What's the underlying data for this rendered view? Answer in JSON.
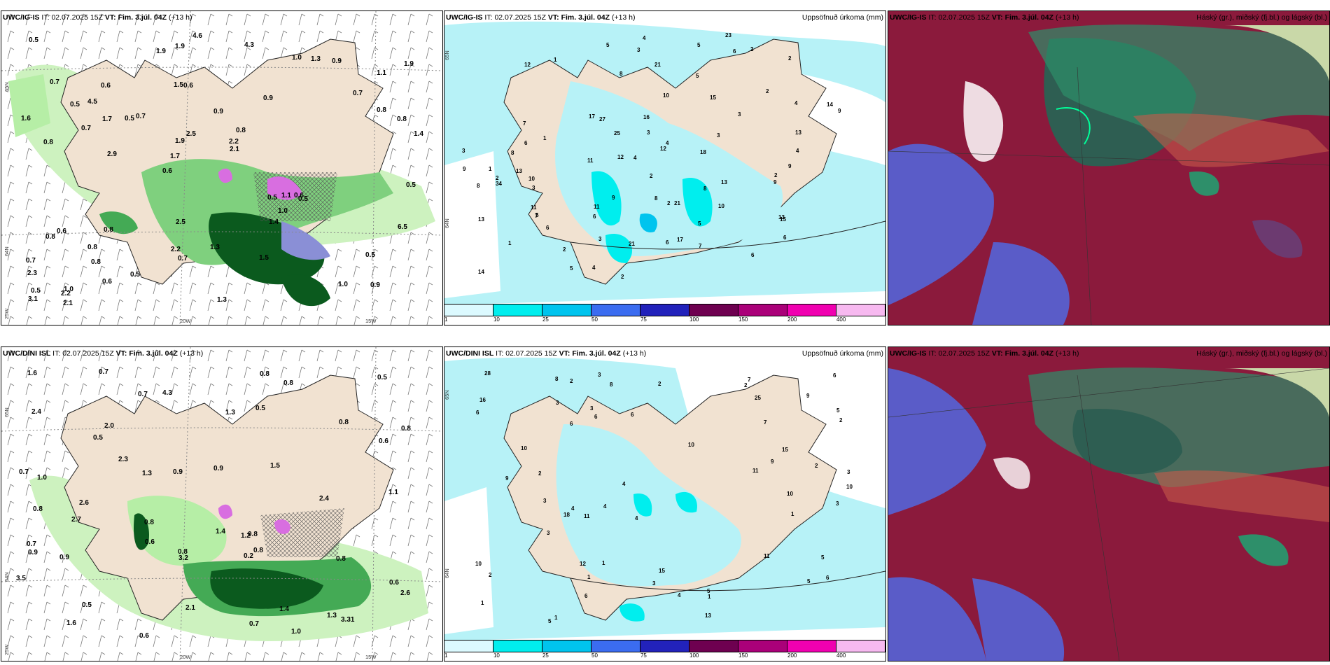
{
  "panels": [
    {
      "model": "UWC/IG-IS",
      "it_label": "IT:",
      "it": "02.07.2025 15Z",
      "vt_label": "VT: Fim. 3.júl. 04Z",
      "lead": "(+13 h)",
      "right_title": "",
      "axis": {
        "lat1": "65N",
        "lat2": "64N",
        "lon1": "25W",
        "lon2": "20W",
        "lon3": "15W"
      },
      "values": [
        "0.9",
        "0.8",
        "1.1",
        "0.6",
        "0.9",
        "1.0",
        "1.5",
        "0.9",
        "0.6",
        "0.7",
        "2.3",
        "0.8",
        "0.6",
        "0.8",
        "0.5",
        "0.7",
        "1.9",
        "1.4",
        "0.5",
        "0.8",
        "1.7",
        "2.2",
        "1.9",
        "0.6",
        "1.0",
        "0.8",
        "1.0",
        "0.5",
        "0.6",
        "1.3",
        "0.5",
        "0.7",
        "1.4",
        "0.6",
        "0.8",
        "2.2",
        "0.5",
        "0.7",
        "2.1",
        "0.8",
        "0.7",
        "1.9",
        "1.0",
        "1.5",
        "0.8",
        "2.1",
        "3.1",
        "1.3",
        "0.9",
        "4.6",
        "2.9",
        "1.6",
        "4.5",
        "1.3",
        "2.2",
        "4.3",
        "1.9",
        "2.5",
        "6.5",
        "2.5",
        "0.5",
        "1.1",
        "1.7",
        "0.7",
        "0.5",
        "0.5",
        "0.5"
      ]
    },
    {
      "model": "UWC/IG-IS",
      "it_label": "IT:",
      "it": "02.07.2025 15Z",
      "vt_label": "VT: Fim. 3.júl. 04Z",
      "lead": "(+13 h)",
      "right_title": "Uppsöfnuð úrkoma (mm)",
      "axis": {
        "lat1": "65N",
        "lat2": "64N"
      },
      "values": [
        "1",
        "2",
        "1",
        "2",
        "2",
        "1",
        "3",
        "5",
        "4",
        "3",
        "1",
        "4",
        "10",
        "12",
        "2",
        "5",
        "6",
        "3",
        "7",
        "4",
        "7",
        "3",
        "8",
        "4",
        "3",
        "3",
        "2",
        "5",
        "10",
        "13",
        "7",
        "6",
        "17",
        "8",
        "15",
        "34",
        "14",
        "18",
        "15",
        "2",
        "9",
        "21",
        "21",
        "10",
        "9",
        "6",
        "8",
        "6",
        "11",
        "5",
        "27",
        "5",
        "16",
        "13",
        "11",
        "21",
        "17",
        "13",
        "12",
        "8",
        "14",
        "23",
        "5",
        "12",
        "9",
        "13",
        "11",
        "3",
        "9",
        "6",
        "9",
        "2",
        "25",
        "13",
        "6",
        "2",
        "8",
        "4",
        "6",
        "2",
        "4"
      ]
    },
    {
      "model": "UWC/IG-IS",
      "it_label": "IT:",
      "it": "02.07.2025 15Z",
      "vt_label": "VT: Fim. 3.júl. 04Z",
      "lead": "(+13 h)",
      "right_title": "Háský (gr.), miðský (fj.bl.) og lágský (bl.)",
      "values": []
    },
    {
      "model": "UWC/DINI ISL",
      "it_label": "IT:",
      "it": "02.07.2025 15Z",
      "vt_label": "VT: Fim. 3.júl. 04Z",
      "lead": "(+13 h)",
      "right_title": "",
      "axis": {
        "lat1": "65N",
        "lat2": "64N",
        "lon1": "25W",
        "lon2": "20W",
        "lon3": "15W"
      },
      "values": [
        "0.8",
        "1.0",
        "0.5",
        "0.2",
        "0.8",
        "0.9",
        "2.4",
        "0.8",
        "1.3",
        "0.9",
        "0.5",
        "0.7",
        "0.9",
        "0.8",
        "0.8",
        "0.6",
        "1.5",
        "0.9",
        "0.6",
        "0.5",
        "0.7",
        "1.2",
        "3.2",
        "1.6",
        "1.6",
        "0.8",
        "1.4",
        "0.8",
        "2.7",
        "2.6",
        "1.1",
        "0.6",
        "4.3",
        "2.4",
        "1.4",
        "0.7",
        "1.0",
        "3.5",
        "3.31",
        "2.0",
        "2.6",
        "1.3",
        "0.8",
        "0.7",
        "0.8",
        "2.3",
        "1.3",
        "0.7",
        "2.1",
        "0.6",
        "0.5",
        "0.8"
      ]
    },
    {
      "model": "UWC/DINI ISL",
      "it_label": "IT:",
      "it": "02.07.2025 15Z",
      "vt_label": "VT: Fim. 3.júl. 04Z",
      "lead": "(+13 h)",
      "right_title": "Uppsöfnuð úrkoma (mm)",
      "axis": {
        "lat1": "65N",
        "lat2": "64N"
      },
      "values": [
        "1",
        "2",
        "1",
        "3",
        "5",
        "3",
        "4",
        "2",
        "1",
        "2",
        "3",
        "4",
        "6",
        "1",
        "2",
        "3",
        "16",
        "10",
        "9",
        "1",
        "8",
        "5",
        "4",
        "6",
        "15",
        "25",
        "3",
        "11",
        "2",
        "9",
        "10",
        "8",
        "6",
        "6",
        "3",
        "7",
        "10",
        "2",
        "5",
        "6",
        "18",
        "6",
        "11",
        "5",
        "15",
        "12",
        "4",
        "13",
        "10",
        "28",
        "7",
        "2",
        "11",
        "10",
        "5",
        "4",
        "3",
        "6",
        "9",
        "1",
        "3"
      ]
    },
    {
      "model": "UWC/IG-IS",
      "it_label": "IT:",
      "it": "02.07.2025 15Z",
      "vt_label": "VT: Fim. 3.júl. 04Z",
      "lead": "(+13 h)",
      "right_title": "Háský (gr.), miðský (fj.bl.) og lágský (bl.)",
      "values": []
    }
  ],
  "precip_legend": {
    "ticks": [
      "1",
      "10",
      "25",
      "50",
      "75",
      "100",
      "150",
      "200",
      "400"
    ],
    "colors": [
      "#dcfaff",
      "#00eeee",
      "#00c4ee",
      "#3b6cf0",
      "#2222bb",
      "#6e0050",
      "#aa0079",
      "#f000b0",
      "#f7b9f0"
    ]
  },
  "colors": {
    "land": "#f1e2d1",
    "green_light": "#b6eea6",
    "green_mid": "#44aa55",
    "green_dark": "#0b5a1e",
    "magenta": "#d86ee0",
    "cyan_light": "#b7f2f7",
    "cloud_red": "#8b1a3c",
    "cloud_blue": "#5a5cc8",
    "cloud_green": "#2e8f6a"
  }
}
